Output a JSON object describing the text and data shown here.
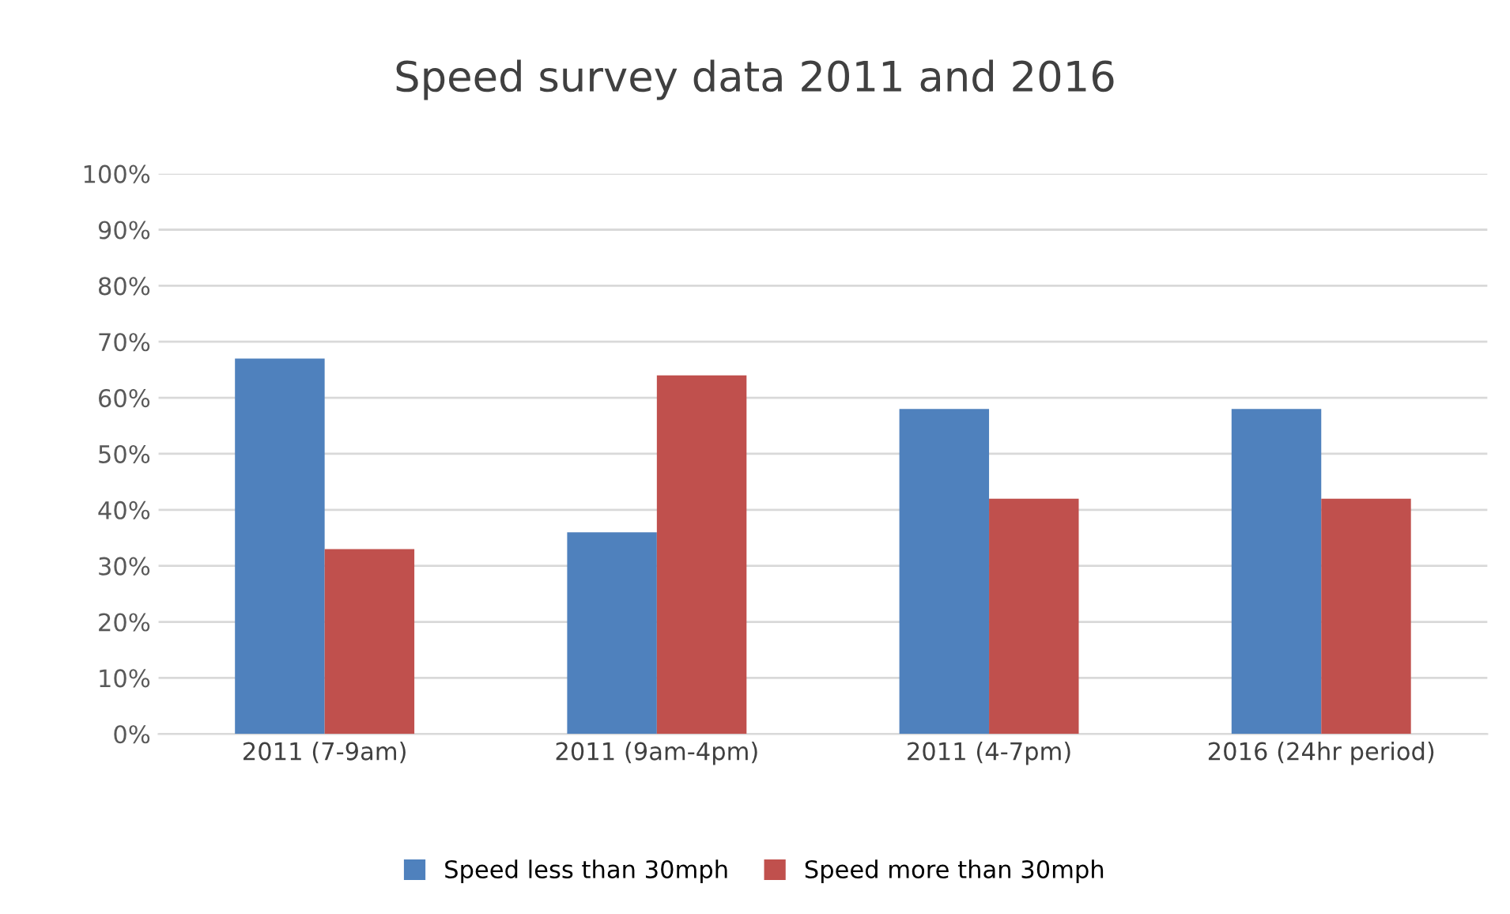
{
  "chart_data": {
    "type": "bar",
    "title": "Speed survey data 2011 and 2016",
    "categories": [
      "2011 (7-9am)",
      "2011 (9am-4pm)",
      "2011 (4-7pm)",
      "2016 (24hr period)"
    ],
    "series": [
      {
        "name": "Speed less than 30mph",
        "color": "#4f81bd",
        "values": [
          67,
          36,
          58,
          58
        ]
      },
      {
        "name": "Speed more than 30mph",
        "color": "#c0504d",
        "values": [
          33,
          64,
          42,
          42
        ]
      }
    ],
    "ylim": [
      0,
      100
    ],
    "yticks": [
      {
        "value": 0,
        "label": "0%"
      },
      {
        "value": 10,
        "label": "10%"
      },
      {
        "value": 20,
        "label": "20%"
      },
      {
        "value": 30,
        "label": "30%"
      },
      {
        "value": 40,
        "label": "40%"
      },
      {
        "value": 50,
        "label": "50%"
      },
      {
        "value": 60,
        "label": "60%"
      },
      {
        "value": 70,
        "label": "70%"
      },
      {
        "value": 80,
        "label": "80%"
      },
      {
        "value": 90,
        "label": "90%"
      },
      {
        "value": 100,
        "label": "100%"
      }
    ],
    "grid": "y",
    "legend": "bottom"
  }
}
